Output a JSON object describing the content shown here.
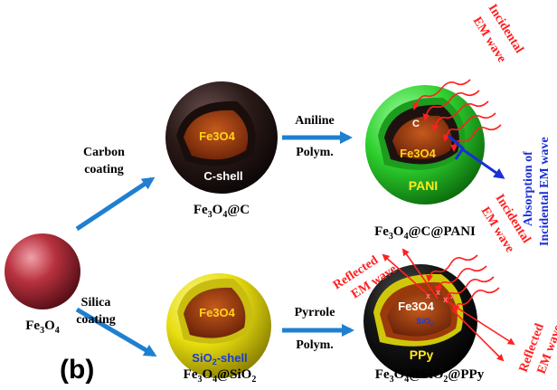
{
  "panel_label": "(b)",
  "colors": {
    "arrow_blue": "#1f7fd0",
    "emwave_red": "#ff2020",
    "absorption_blue": "#1a2fd6",
    "core_brown": "#9a3a0c",
    "pani_green": "#2ed12e",
    "silica_yellow": "#f2ea1c",
    "ppy_black": "#111111",
    "carbon_dark": "#2a1a18",
    "fe3o4_sphere": "#b8323f"
  },
  "nodes": {
    "fe3o4": {
      "label": "Fe3O4",
      "main": "Fe",
      "sub1": "3",
      "mid": "O",
      "sub2": "4"
    },
    "fe3o4_c": {
      "main": "Fe",
      "sub1": "3",
      "mid": "O",
      "sub2": "4",
      "tail": "@C",
      "core_label": "Fe3O4",
      "shell_label": "C-shell"
    },
    "fe3o4_sio2": {
      "main": "Fe",
      "sub1": "3",
      "mid": "O",
      "sub2": "4",
      "tail_a": "@SiO",
      "sub3": "2",
      "core_label": "Fe3O4",
      "shell_label_a": "SiO",
      "shell_sub": "2",
      "shell_label_b": "-shell"
    },
    "fe3o4_c_pani": {
      "main": "Fe",
      "sub1": "3",
      "mid": "O",
      "sub2": "4",
      "tail": "@C@PANI",
      "core_label": "Fe3O4",
      "inner_label": "C",
      "shell_label": "PANI"
    },
    "fe3o4_sio2_ppy": {
      "main": "Fe",
      "sub1": "3",
      "mid": "O",
      "sub2": "4",
      "tail_a": "@SiO",
      "sub3": "2",
      "tail_b": "@PPy",
      "core_label": "Fe3O4",
      "inner_label_a": "SiO",
      "inner_sub": "2",
      "shell_label": "PPy"
    }
  },
  "steps": {
    "carbon_coating": {
      "line1": "Carbon",
      "line2": "coating"
    },
    "silica_coating": {
      "line1": "Silica",
      "line2": "coating"
    },
    "aniline_polym": {
      "line1": "Aniline",
      "line2": "Polym."
    },
    "pyrrole_polym": {
      "line1": "Pyrrole",
      "line2": "Polym."
    }
  },
  "annotations": {
    "incident_top": {
      "line1": "Incidental",
      "line2": "EM wave"
    },
    "absorption": {
      "line1": "Absorption of",
      "line2": "Incidental EM wave"
    },
    "reflected_left": {
      "line1": "Reflected",
      "line2": "EM wave"
    },
    "incident_bottom": {
      "line1": "Incidental",
      "line2": "EM wave"
    },
    "reflected_right": {
      "line1": "Reflected",
      "line2": "EM wave"
    },
    "x_mark": "x"
  }
}
